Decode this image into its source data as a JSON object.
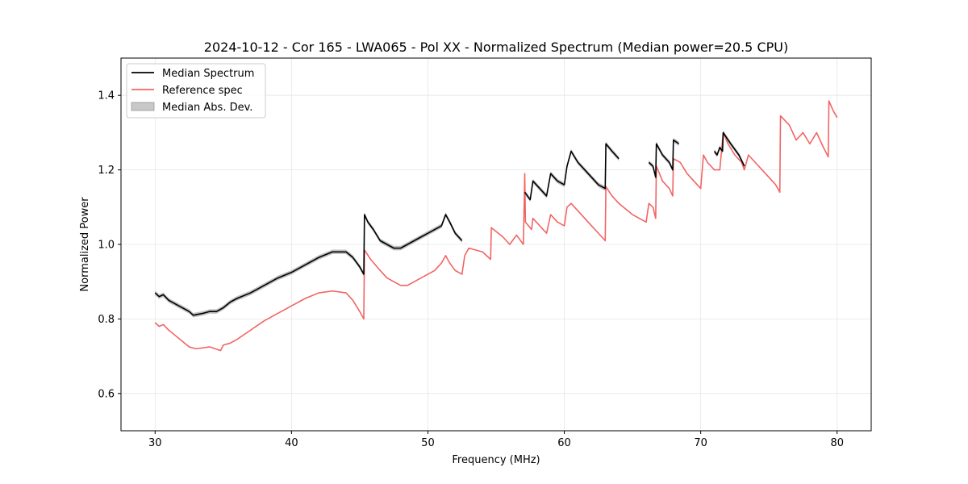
{
  "chart_data": {
    "type": "line",
    "title": "2024-10-12 - Cor 165 - LWA065 - Pol XX - Normalized Spectrum (Median power=20.5 CPU)",
    "xlabel": "Frequency (MHz)",
    "ylabel": "Normalized Power",
    "xlim": [
      27.5,
      82.5
    ],
    "ylim": [
      0.5,
      1.5
    ],
    "xticks": [
      30,
      40,
      50,
      60,
      70,
      80
    ],
    "yticks": [
      0.6,
      0.8,
      1.0,
      1.2,
      1.4
    ],
    "xtick_labels": [
      "30",
      "40",
      "50",
      "60",
      "70",
      "80"
    ],
    "ytick_labels": [
      "0.6",
      "0.8",
      "1.0",
      "1.2",
      "1.4"
    ],
    "grid": true,
    "legend_position": "upper-left",
    "legend": [
      "Median Spectrum",
      "Reference spec",
      "Median Abs. Dev."
    ],
    "series": [
      {
        "name": "Median Spectrum",
        "color": "#000000",
        "segments": [
          [
            [
              30.0,
              0.87
            ],
            [
              30.3,
              0.86
            ],
            [
              30.6,
              0.865
            ],
            [
              31.0,
              0.85
            ],
            [
              31.5,
              0.84
            ],
            [
              32.0,
              0.83
            ],
            [
              32.5,
              0.82
            ],
            [
              32.8,
              0.81
            ],
            [
              33.5,
              0.815
            ],
            [
              34.0,
              0.82
            ],
            [
              34.5,
              0.82
            ],
            [
              35.0,
              0.83
            ],
            [
              35.5,
              0.845
            ],
            [
              36.0,
              0.855
            ],
            [
              37.0,
              0.87
            ],
            [
              38.0,
              0.89
            ],
            [
              39.0,
              0.91
            ],
            [
              40.0,
              0.925
            ],
            [
              41.0,
              0.945
            ],
            [
              42.0,
              0.965
            ],
            [
              43.0,
              0.98
            ],
            [
              44.0,
              0.98
            ],
            [
              44.5,
              0.965
            ],
            [
              45.0,
              0.94
            ],
            [
              45.3,
              0.92
            ],
            [
              45.35,
              1.08
            ],
            [
              45.6,
              1.06
            ],
            [
              46.0,
              1.04
            ],
            [
              46.5,
              1.01
            ],
            [
              47.0,
              1.0
            ],
            [
              47.5,
              0.99
            ],
            [
              48.0,
              0.99
            ],
            [
              48.5,
              1.0
            ],
            [
              49.0,
              1.01
            ],
            [
              49.5,
              1.02
            ],
            [
              50.0,
              1.03
            ],
            [
              50.5,
              1.04
            ],
            [
              51.0,
              1.05
            ],
            [
              51.3,
              1.08
            ],
            [
              51.6,
              1.06
            ],
            [
              52.0,
              1.03
            ],
            [
              52.5,
              1.01
            ]
          ],
          [
            [
              57.1,
              1.14
            ],
            [
              57.5,
              1.12
            ],
            [
              57.7,
              1.17
            ],
            [
              58.2,
              1.15
            ],
            [
              58.7,
              1.13
            ],
            [
              59.0,
              1.19
            ],
            [
              59.5,
              1.17
            ],
            [
              60.0,
              1.16
            ],
            [
              60.2,
              1.21
            ],
            [
              60.5,
              1.25
            ],
            [
              61.0,
              1.22
            ],
            [
              61.5,
              1.2
            ],
            [
              62.0,
              1.18
            ],
            [
              62.5,
              1.16
            ],
            [
              63.0,
              1.15
            ],
            [
              63.05,
              1.27
            ],
            [
              63.5,
              1.25
            ],
            [
              64.0,
              1.23
            ]
          ],
          [
            [
              66.2,
              1.22
            ],
            [
              66.5,
              1.21
            ],
            [
              66.7,
              1.18
            ],
            [
              66.75,
              1.27
            ],
            [
              67.2,
              1.24
            ],
            [
              67.7,
              1.22
            ],
            [
              67.95,
              1.2
            ],
            [
              68.0,
              1.28
            ],
            [
              68.4,
              1.27
            ]
          ],
          [
            [
              71.0,
              1.25
            ],
            [
              71.2,
              1.24
            ],
            [
              71.4,
              1.26
            ],
            [
              71.6,
              1.25
            ],
            [
              71.65,
              1.3
            ],
            [
              72.2,
              1.27
            ],
            [
              72.8,
              1.24
            ],
            [
              73.2,
              1.21
            ]
          ]
        ]
      },
      {
        "name": "Reference spec",
        "color": "#f26464",
        "segments": [
          [
            [
              30.0,
              0.79
            ],
            [
              30.3,
              0.78
            ],
            [
              30.6,
              0.785
            ],
            [
              31.0,
              0.77
            ],
            [
              31.5,
              0.755
            ],
            [
              32.0,
              0.74
            ],
            [
              32.5,
              0.725
            ],
            [
              33.0,
              0.72
            ],
            [
              34.0,
              0.725
            ],
            [
              34.8,
              0.715
            ],
            [
              35.0,
              0.73
            ],
            [
              35.5,
              0.735
            ],
            [
              36.0,
              0.745
            ],
            [
              37.0,
              0.77
            ],
            [
              38.0,
              0.795
            ],
            [
              39.0,
              0.815
            ],
            [
              40.0,
              0.835
            ],
            [
              41.0,
              0.855
            ],
            [
              42.0,
              0.87
            ],
            [
              43.0,
              0.875
            ],
            [
              44.0,
              0.87
            ],
            [
              44.5,
              0.85
            ],
            [
              45.0,
              0.82
            ],
            [
              45.3,
              0.8
            ],
            [
              45.35,
              0.985
            ],
            [
              45.8,
              0.96
            ],
            [
              46.5,
              0.93
            ],
            [
              47.0,
              0.91
            ],
            [
              47.5,
              0.9
            ],
            [
              48.0,
              0.89
            ],
            [
              48.5,
              0.89
            ],
            [
              49.0,
              0.9
            ],
            [
              49.5,
              0.91
            ],
            [
              50.0,
              0.92
            ],
            [
              50.5,
              0.93
            ],
            [
              51.0,
              0.95
            ],
            [
              51.3,
              0.97
            ],
            [
              51.6,
              0.95
            ],
            [
              52.0,
              0.93
            ],
            [
              52.5,
              0.92
            ],
            [
              52.7,
              0.97
            ],
            [
              53.0,
              0.99
            ],
            [
              54.0,
              0.98
            ],
            [
              54.6,
              0.96
            ],
            [
              54.65,
              1.045
            ],
            [
              55.5,
              1.02
            ],
            [
              56.0,
              1.0
            ],
            [
              56.5,
              1.025
            ],
            [
              57.0,
              1.0
            ],
            [
              57.1,
              1.19
            ],
            [
              57.15,
              1.06
            ],
            [
              57.6,
              1.04
            ],
            [
              57.7,
              1.07
            ],
            [
              58.2,
              1.05
            ],
            [
              58.7,
              1.03
            ],
            [
              59.0,
              1.08
            ],
            [
              59.5,
              1.06
            ],
            [
              60.0,
              1.05
            ],
            [
              60.2,
              1.1
            ],
            [
              60.5,
              1.11
            ],
            [
              61.0,
              1.09
            ],
            [
              61.5,
              1.07
            ],
            [
              62.0,
              1.05
            ],
            [
              62.5,
              1.03
            ],
            [
              63.0,
              1.01
            ],
            [
              63.05,
              1.155
            ],
            [
              63.5,
              1.13
            ],
            [
              64.0,
              1.11
            ],
            [
              65.0,
              1.08
            ],
            [
              66.0,
              1.06
            ],
            [
              66.2,
              1.11
            ],
            [
              66.5,
              1.1
            ],
            [
              66.7,
              1.07
            ],
            [
              66.75,
              1.21
            ],
            [
              67.2,
              1.17
            ],
            [
              67.7,
              1.15
            ],
            [
              67.95,
              1.13
            ],
            [
              68.0,
              1.23
            ],
            [
              68.5,
              1.22
            ],
            [
              69.0,
              1.19
            ],
            [
              69.5,
              1.17
            ],
            [
              70.0,
              1.15
            ],
            [
              70.2,
              1.24
            ],
            [
              70.5,
              1.22
            ],
            [
              71.0,
              1.2
            ],
            [
              71.4,
              1.2
            ],
            [
              71.65,
              1.3
            ],
            [
              72.0,
              1.27
            ],
            [
              72.5,
              1.24
            ],
            [
              73.0,
              1.22
            ],
            [
              73.2,
              1.2
            ],
            [
              73.5,
              1.24
            ],
            [
              74.0,
              1.22
            ],
            [
              74.5,
              1.2
            ],
            [
              75.0,
              1.18
            ],
            [
              75.5,
              1.16
            ],
            [
              75.8,
              1.14
            ],
            [
              75.85,
              1.345
            ],
            [
              76.5,
              1.32
            ],
            [
              77.0,
              1.28
            ],
            [
              77.5,
              1.3
            ],
            [
              78.0,
              1.27
            ],
            [
              78.5,
              1.3
            ],
            [
              79.0,
              1.26
            ],
            [
              79.35,
              1.235
            ],
            [
              79.4,
              1.385
            ],
            [
              79.7,
              1.36
            ],
            [
              80.0,
              1.34
            ]
          ]
        ]
      }
    ],
    "mad_band": {
      "name": "Median Abs. Dev.",
      "color": "#b4b4b4",
      "half_width": 0.006
    }
  }
}
